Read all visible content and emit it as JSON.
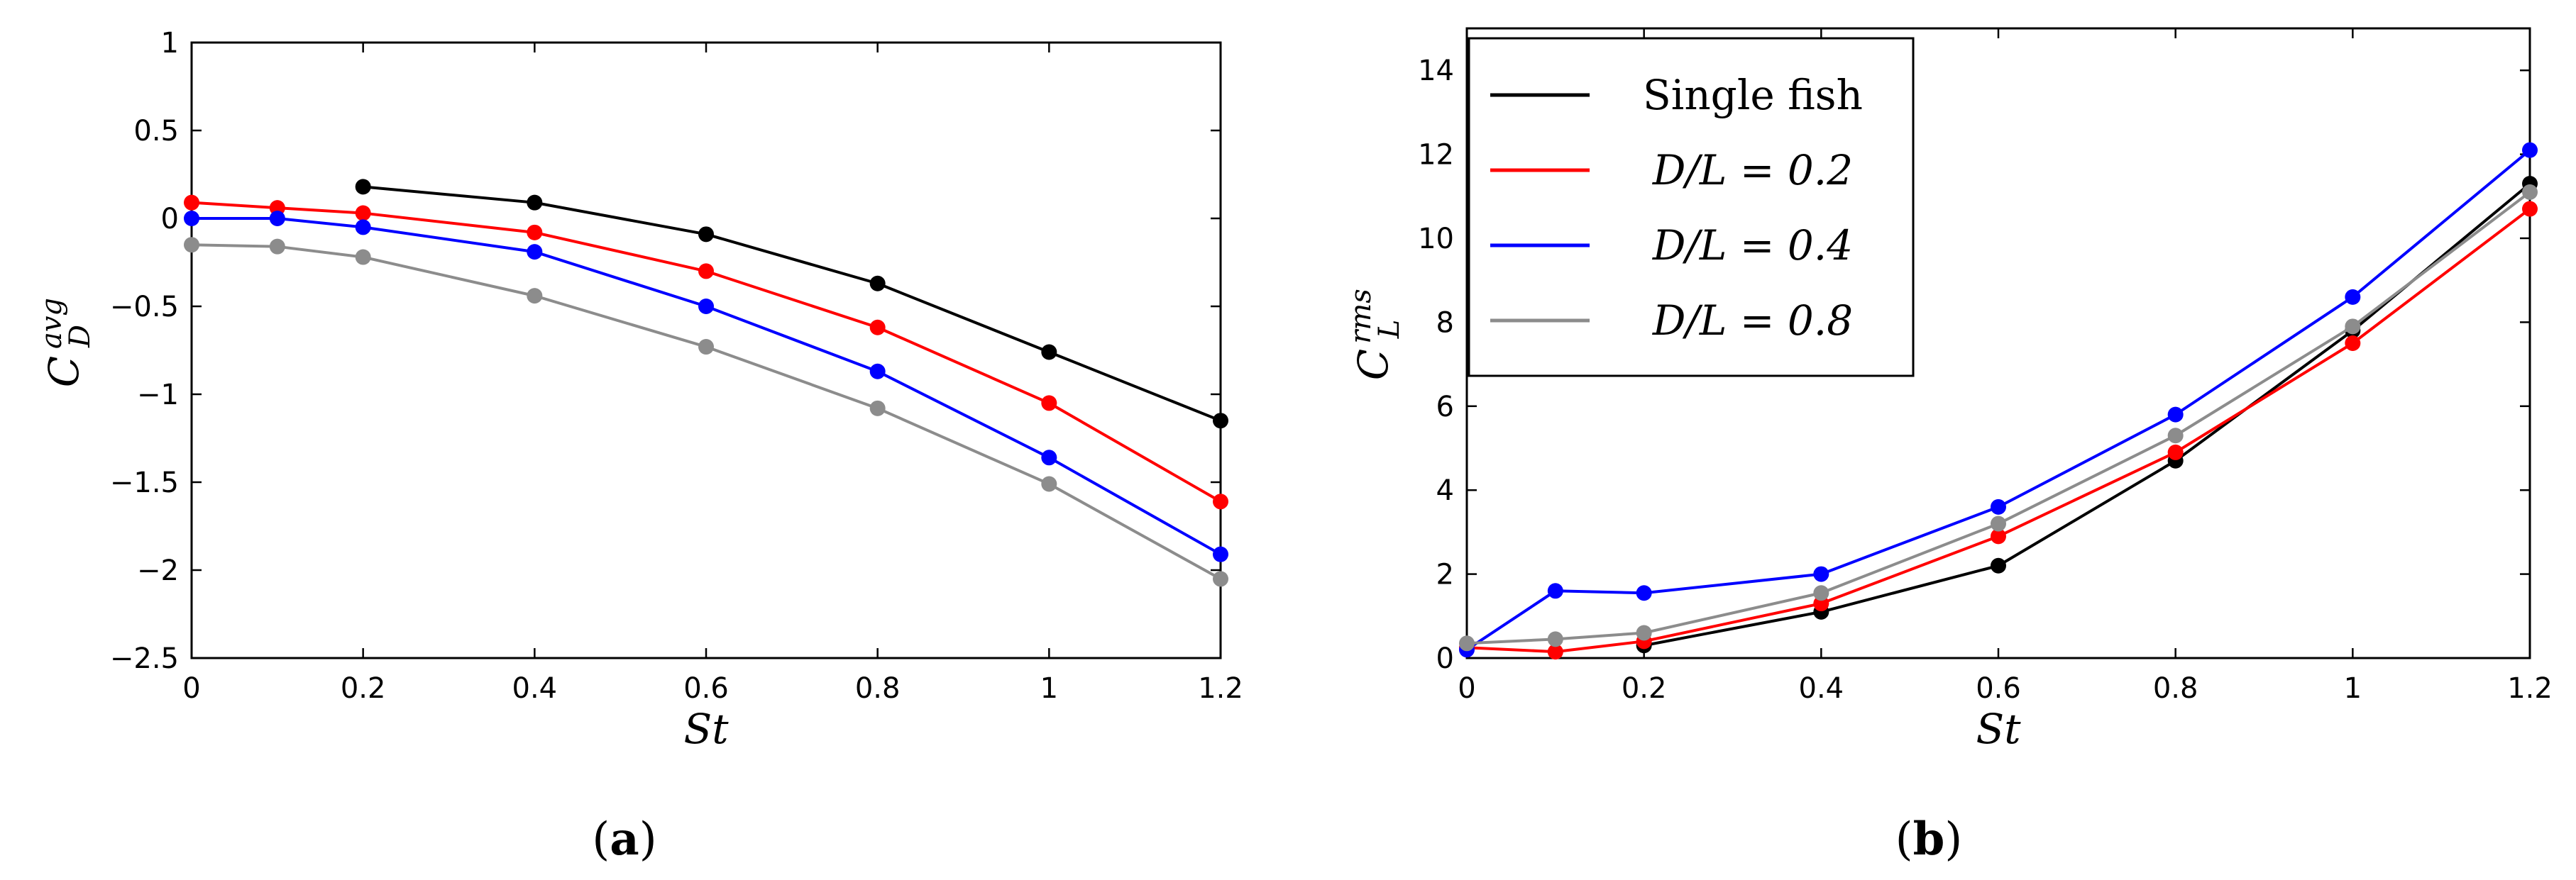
{
  "chart_data": [
    {
      "panel": "(a)",
      "panel_letter": "a",
      "type": "line",
      "xlabel": "St",
      "ylabel_main": "C",
      "ylabel_sub": "D",
      "ylabel_sup": "avg",
      "xlim": [
        0,
        1.2
      ],
      "ylim": [
        -2.5,
        1
      ],
      "xticks": [
        0,
        0.2,
        0.4,
        0.6,
        0.8,
        1,
        1.2
      ],
      "xtick_labels": [
        "0",
        "0.2",
        "0.4",
        "0.6",
        "0.8",
        "1",
        "1.2"
      ],
      "yticks": [
        -2.5,
        -2,
        -1.5,
        -1,
        -0.5,
        0,
        0.5,
        1
      ],
      "ytick_labels": [
        "−2.5",
        "−2",
        "−1.5",
        "−1",
        "−0.5",
        "0",
        "0.5",
        "1"
      ],
      "series": [
        {
          "name": "Single fish",
          "color": "#000000",
          "x": [
            0.2,
            0.4,
            0.6,
            0.8,
            1.0,
            1.2
          ],
          "y": [
            0.18,
            0.09,
            -0.09,
            -0.37,
            -0.76,
            -1.15
          ]
        },
        {
          "name": "D/L = 0.2",
          "color": "#ff0000",
          "x": [
            0,
            0.1,
            0.2,
            0.4,
            0.6,
            0.8,
            1.0,
            1.2
          ],
          "y": [
            0.09,
            0.06,
            0.03,
            -0.08,
            -0.3,
            -0.62,
            -1.05,
            -1.61
          ]
        },
        {
          "name": "D/L = 0.4",
          "color": "#0000ff",
          "x": [
            0,
            0.1,
            0.2,
            0.4,
            0.6,
            0.8,
            1.0,
            1.2
          ],
          "y": [
            0.0,
            0.0,
            -0.05,
            -0.19,
            -0.5,
            -0.87,
            -1.36,
            -1.91
          ]
        },
        {
          "name": "D/L = 0.8",
          "color": "#8c8c8c",
          "x": [
            0,
            0.1,
            0.2,
            0.4,
            0.6,
            0.8,
            1.0,
            1.2
          ],
          "y": [
            -0.15,
            -0.16,
            -0.22,
            -0.44,
            -0.73,
            -1.08,
            -1.51,
            -2.05
          ]
        }
      ]
    },
    {
      "panel": "(b)",
      "panel_letter": "b",
      "type": "line",
      "xlabel": "St",
      "ylabel_main": "C",
      "ylabel_sub": "L",
      "ylabel_sup": "rms",
      "xlim": [
        0,
        1.2
      ],
      "ylim": [
        0,
        15
      ],
      "xticks": [
        0,
        0.2,
        0.4,
        0.6,
        0.8,
        1,
        1.2
      ],
      "xtick_labels": [
        "0",
        "0.2",
        "0.4",
        "0.6",
        "0.8",
        "1",
        "1.2"
      ],
      "yticks": [
        0,
        2,
        4,
        6,
        8,
        10,
        12,
        14
      ],
      "ytick_labels": [
        "0",
        "2",
        "4",
        "6",
        "8",
        "10",
        "12",
        "14"
      ],
      "legend": {
        "placement": "top-left",
        "entries": [
          {
            "text": "Single  fish",
            "italic": false,
            "color": "#000000"
          },
          {
            "text": "D/L = 0.2",
            "italic": true,
            "color": "#ff0000"
          },
          {
            "text": "D/L = 0.4",
            "italic": true,
            "color": "#0000ff"
          },
          {
            "text": "D/L = 0.8",
            "italic": true,
            "color": "#8c8c8c"
          }
        ]
      },
      "series": [
        {
          "name": "Single fish",
          "color": "#000000",
          "x": [
            0.2,
            0.4,
            0.6,
            0.8,
            1.0,
            1.2
          ],
          "y": [
            0.3,
            1.1,
            2.2,
            4.7,
            7.8,
            11.3
          ]
        },
        {
          "name": "D/L = 0.2",
          "color": "#ff0000",
          "x": [
            0,
            0.1,
            0.2,
            0.4,
            0.6,
            0.8,
            1.0,
            1.2
          ],
          "y": [
            0.25,
            0.15,
            0.4,
            1.3,
            2.9,
            4.9,
            7.5,
            10.7
          ]
        },
        {
          "name": "D/L = 0.4",
          "color": "#0000ff",
          "x": [
            0,
            0.1,
            0.2,
            0.4,
            0.6,
            0.8,
            1.0,
            1.2
          ],
          "y": [
            0.2,
            1.6,
            1.55,
            2.0,
            3.6,
            5.8,
            8.6,
            12.1
          ]
        },
        {
          "name": "D/L = 0.8",
          "color": "#8c8c8c",
          "x": [
            0,
            0.1,
            0.2,
            0.4,
            0.6,
            0.8,
            1.0,
            1.2
          ],
          "y": [
            0.35,
            0.45,
            0.6,
            1.55,
            3.2,
            5.3,
            7.9,
            11.1
          ]
        }
      ]
    }
  ]
}
